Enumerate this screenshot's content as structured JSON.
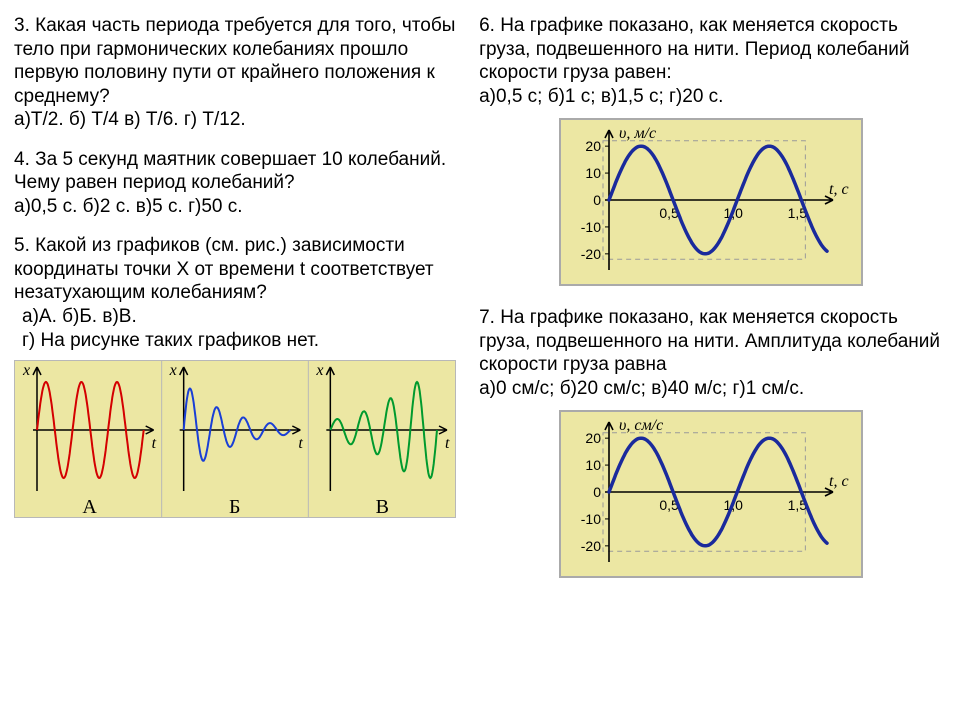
{
  "q3": {
    "text": "3. Какая часть периода требуется для того, чтобы тело при гармонических колебаниях прошло первую половину пути от крайнего положения к среднему?",
    "options": "а)Т/2.  б) Т/4 в)  Т/6. г) Т/12."
  },
  "q4": {
    "text": "4. За 5 секунд маятник совершает 10 колебаний. Чему равен период колебаний?",
    "options": "а)0,5 с.   б)2 с.   в)5 с.   г)50 с."
  },
  "q5": {
    "text": "5. Какой из графиков (см. рис.) зависимости координаты точки Х от времени t соответствует незатухающим колебаниям?",
    "options1": " а)А.    б)Б.    в)В.",
    "options2": " г) На рисунке таких графиков нет.",
    "chart": {
      "type": "multi-line-panels",
      "background_color": "#ece7a3",
      "panels": [
        {
          "label": "А",
          "color": "#d40000",
          "pattern": "constant-amplitude",
          "periods": 3,
          "amplitude": 1.0
        },
        {
          "label": "Б",
          "color": "#1a3fd6",
          "pattern": "damped",
          "periods": 4,
          "amplitude_start": 1.0,
          "decay": 0.55
        },
        {
          "label": "В",
          "color": "#009a2e",
          "pattern": "growing",
          "periods": 4,
          "amplitude_start": 0.2,
          "growth": 1.7
        }
      ],
      "axis_color": "#000000",
      "line_width": 2
    }
  },
  "q6": {
    "text": "6. На графике показано, как меняется скорость груза, подвешенного на нити. Период колебаний скорости груза равен:",
    "options": " а)0,5 с;    б)1 с;    в)1,5 с;   г)20 с.",
    "chart": {
      "type": "line",
      "background_color": "#ece7a3",
      "line_color": "#1a2a9c",
      "line_width": 3.5,
      "grid_color": "#9a9a9a",
      "ylabel": "υ, м/с",
      "xlabel": "t, с",
      "yticks": [
        -20,
        -10,
        0,
        10,
        20
      ],
      "xticks_labels": [
        "0,5",
        "1,0",
        "1,5"
      ],
      "xticks_values": [
        0.5,
        1.0,
        1.5
      ],
      "xlim": [
        0,
        1.7
      ],
      "ylim": [
        -26,
        28
      ],
      "amplitude": 20,
      "period": 1.0,
      "phase": 0
    }
  },
  "q7": {
    "text": "7. На графике показано, как меняется скорость груза, подвешенного на нити. Амплитуда колебаний скорости груза равна",
    "options": " а)0 см/с;   б)20 см/с;   в)40 м/с;   г)1 см/с.",
    "chart": {
      "type": "line",
      "background_color": "#ece7a3",
      "line_color": "#1a2a9c",
      "line_width": 3.5,
      "grid_color": "#9a9a9a",
      "ylabel": "υ, см/с",
      "xlabel": "t, с",
      "yticks": [
        -20,
        -10,
        0,
        10,
        20
      ],
      "xticks_labels": [
        "0,5",
        "1,0",
        "1,5"
      ],
      "xticks_values": [
        0.5,
        1.0,
        1.5
      ],
      "xlim": [
        0,
        1.7
      ],
      "ylim": [
        -26,
        28
      ],
      "amplitude": 20,
      "period": 1.0,
      "phase": 0
    }
  }
}
